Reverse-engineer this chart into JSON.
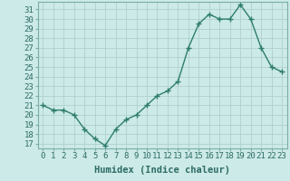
{
  "x": [
    0,
    1,
    2,
    3,
    4,
    5,
    6,
    7,
    8,
    9,
    10,
    11,
    12,
    13,
    14,
    15,
    16,
    17,
    18,
    19,
    20,
    21,
    22,
    23
  ],
  "y": [
    21,
    20.5,
    20.5,
    20,
    18.5,
    17.5,
    16.8,
    18.5,
    19.5,
    20,
    21,
    22,
    22.5,
    23.5,
    27,
    29.5,
    30.5,
    30,
    30,
    31.5,
    30,
    27,
    25,
    24.5
  ],
  "line_color": "#2e7d6e",
  "marker_color": "#2e7d6e",
  "bg_color": "#cceae7",
  "grid_color": "#b0d0cd",
  "xlabel": "Humidex (Indice chaleur)",
  "ylabel_ticks": [
    17,
    18,
    19,
    20,
    21,
    22,
    23,
    24,
    25,
    26,
    27,
    28,
    29,
    30,
    31
  ],
  "ylim": [
    16.5,
    31.8
  ],
  "xlim": [
    -0.5,
    23.5
  ],
  "xticks": [
    0,
    1,
    2,
    3,
    4,
    5,
    6,
    7,
    8,
    9,
    10,
    11,
    12,
    13,
    14,
    15,
    16,
    17,
    18,
    19,
    20,
    21,
    22,
    23
  ],
  "tick_fontsize": 6.5,
  "xlabel_fontsize": 7.5,
  "line_width": 1.0,
  "marker_size": 2.5,
  "spine_color": "#7aada9"
}
